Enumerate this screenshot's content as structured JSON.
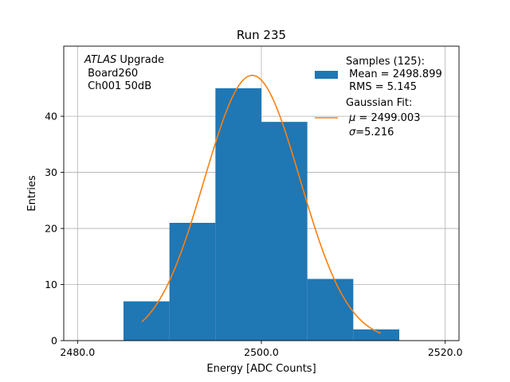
{
  "chart_data": {
    "type": "bar",
    "title": "Run 235",
    "xlabel": "Energy [ADC Counts]",
    "ylabel": "Entries",
    "xlim": [
      2478.5,
      2521.5
    ],
    "ylim": [
      0,
      52.5
    ],
    "xticks": [
      2480,
      2500,
      2520
    ],
    "xtick_labels": [
      "2480.0",
      "2500.0",
      "2520.0"
    ],
    "yticks": [
      0,
      10,
      20,
      30,
      40
    ],
    "ytick_labels": [
      "0",
      "10",
      "20",
      "30",
      "40"
    ],
    "grid": true,
    "histogram": {
      "bin_edges": [
        2485,
        2490,
        2495,
        2500,
        2505,
        2510,
        2515
      ],
      "counts": [
        7,
        21,
        45,
        39,
        11,
        2
      ],
      "color": "#1f77b4"
    },
    "fit": {
      "type": "gaussian",
      "mu": 2499.003,
      "sigma": 5.216,
      "amplitude": 47.3,
      "x_range": [
        2487,
        2513
      ],
      "color": "#ff7f0e"
    },
    "annotation": {
      "italic": "ATLAS",
      "line1_rest": " Upgrade",
      "line2": " Board260",
      "line3": " Ch001 50dB"
    },
    "legend": {
      "position": "top-right",
      "samples": {
        "line1": "Samples (125):",
        "line2": " Mean = 2498.899",
        "line3": " RMS = 5.145"
      },
      "fit": {
        "line1": "Gaussian Fit:",
        "line2_sym": "μ",
        "line2_rest": " = 2499.003",
        "line3_sym": "σ",
        "line3_rest": "=5.216"
      }
    }
  }
}
